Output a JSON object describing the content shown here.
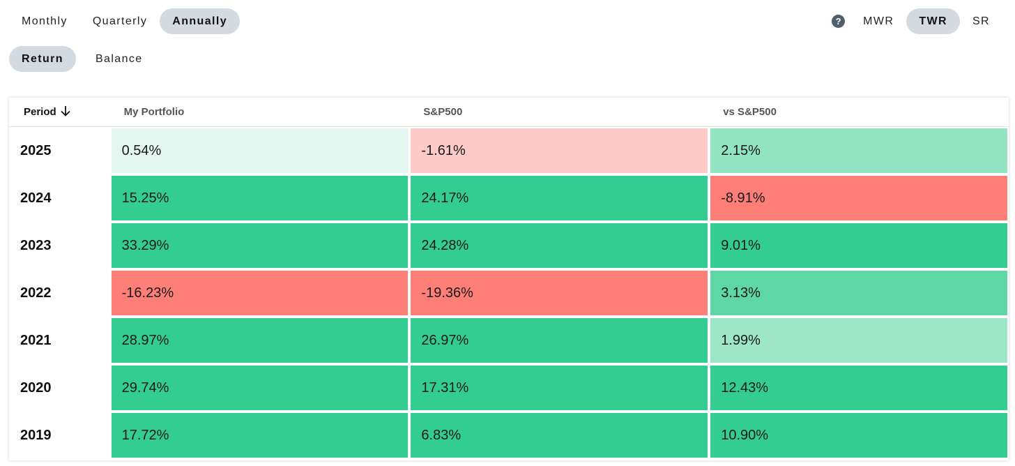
{
  "period_toggle": {
    "options": [
      "Monthly",
      "Quarterly",
      "Annually"
    ],
    "selected": "Annually"
  },
  "view_toggle": {
    "options": [
      "Return",
      "Balance"
    ],
    "selected": "Return"
  },
  "method_toggle": {
    "help_icon": "question-circle-icon",
    "options": [
      "MWR",
      "TWR",
      "SR"
    ],
    "selected": "TWR"
  },
  "table": {
    "headers": {
      "period": "Period",
      "sort_icon": "arrow-down-icon",
      "col1": "My Portfolio",
      "col2": "S&P500",
      "col3": "vs S&P500"
    },
    "rows": [
      {
        "year": "2025",
        "portfolio": "0.54%",
        "sp500": "-1.61%",
        "vs": "2.15%",
        "colors": [
          "#e3f7f0",
          "#ffcbc9",
          "#92e4c3"
        ]
      },
      {
        "year": "2024",
        "portfolio": "15.25%",
        "sp500": "24.17%",
        "vs": "-8.91%",
        "colors": [
          "#33cc91",
          "#33cc91",
          "#fe7e78"
        ]
      },
      {
        "year": "2023",
        "portfolio": "33.29%",
        "sp500": "24.28%",
        "vs": "9.01%",
        "colors": [
          "#33cc91",
          "#33cc91",
          "#33cc91"
        ]
      },
      {
        "year": "2022",
        "portfolio": "-16.23%",
        "sp500": "-19.36%",
        "vs": "3.13%",
        "colors": [
          "#fe7e78",
          "#fe7e78",
          "#5fd6a6"
        ]
      },
      {
        "year": "2021",
        "portfolio": "28.97%",
        "sp500": "26.97%",
        "vs": "1.99%",
        "colors": [
          "#33cc91",
          "#33cc91",
          "#9de6c8"
        ]
      },
      {
        "year": "2020",
        "portfolio": "29.74%",
        "sp500": "17.31%",
        "vs": "12.43%",
        "colors": [
          "#33cc91",
          "#33cc91",
          "#33cc91"
        ]
      },
      {
        "year": "2019",
        "portfolio": "17.72%",
        "sp500": "6.83%",
        "vs": "10.90%",
        "colors": [
          "#33cc91",
          "#33cc91",
          "#33cc91"
        ]
      }
    ]
  }
}
